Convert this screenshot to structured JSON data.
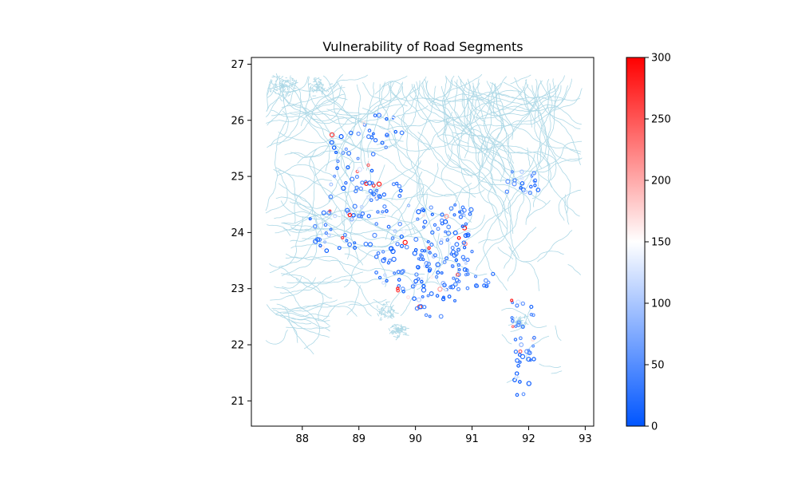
{
  "map": {
    "title": "Vulnerability of Road Segments",
    "x_ticks": [
      88,
      89,
      90,
      91,
      92,
      93
    ],
    "y_ticks": [
      21,
      22,
      23,
      24,
      25,
      26,
      27
    ],
    "x_range": [
      87.1,
      93.15
    ],
    "y_range": [
      20.55,
      27.12
    ],
    "river_color": "#add8e6",
    "colorbar": {
      "min": 0,
      "max": 300,
      "ticks": [
        0,
        50,
        100,
        150,
        200,
        250,
        300
      ],
      "colors": [
        "#0055ff",
        "#ffffff",
        "#ff0000"
      ]
    }
  }
}
